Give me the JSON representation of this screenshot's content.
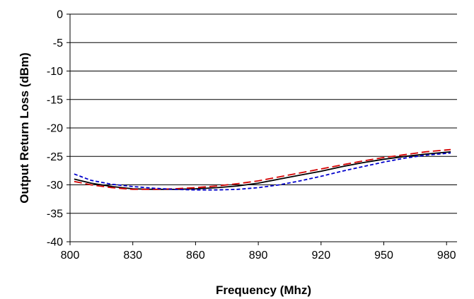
{
  "chart_data": {
    "type": "line",
    "title": "",
    "xlabel": "Frequency (Mhz)",
    "ylabel": "Output Return Loss (dBm)",
    "xlim": [
      800,
      985
    ],
    "ylim": [
      -40,
      0
    ],
    "x_ticks": [
      800,
      830,
      860,
      890,
      920,
      950,
      980
    ],
    "y_ticks": [
      0,
      -5,
      -10,
      -15,
      -20,
      -25,
      -30,
      -35,
      -40
    ],
    "x_tick_labels": [
      "800",
      "830",
      "860",
      "890",
      "920",
      "950",
      "980"
    ],
    "y_tick_labels": [
      "0",
      "-5",
      "-10",
      "-15",
      "-20",
      "-25",
      "-30",
      "-35",
      "-40"
    ],
    "grid": "horizontal",
    "legend": "none",
    "series": [
      {
        "color": "#000000",
        "style": "solid",
        "x": [
          802,
          810,
          820,
          830,
          840,
          850,
          860,
          870,
          880,
          890,
          900,
          910,
          920,
          930,
          940,
          950,
          960,
          970,
          982
        ],
        "y": [
          -29.0,
          -29.7,
          -30.3,
          -30.7,
          -30.8,
          -30.8,
          -30.7,
          -30.5,
          -30.2,
          -29.7,
          -29.0,
          -28.3,
          -27.6,
          -26.8,
          -26.1,
          -25.5,
          -25.0,
          -24.6,
          -24.2
        ]
      },
      {
        "color": "#d40000",
        "style": "long-dash",
        "x": [
          802,
          810,
          820,
          830,
          840,
          850,
          860,
          870,
          880,
          890,
          900,
          910,
          920,
          930,
          940,
          950,
          960,
          970,
          982
        ],
        "y": [
          -29.4,
          -30.0,
          -30.5,
          -30.8,
          -30.8,
          -30.7,
          -30.5,
          -30.2,
          -29.8,
          -29.3,
          -28.6,
          -27.9,
          -27.2,
          -26.5,
          -25.8,
          -25.2,
          -24.7,
          -24.2,
          -23.8
        ]
      },
      {
        "color": "#0000cc",
        "style": "short-dash",
        "x": [
          802,
          810,
          820,
          830,
          840,
          850,
          860,
          870,
          880,
          890,
          900,
          910,
          920,
          930,
          940,
          950,
          960,
          970,
          982
        ],
        "y": [
          -28.1,
          -29.2,
          -29.9,
          -30.3,
          -30.6,
          -30.8,
          -30.9,
          -30.9,
          -30.8,
          -30.5,
          -30.0,
          -29.3,
          -28.5,
          -27.6,
          -26.8,
          -26.0,
          -25.3,
          -24.8,
          -24.4
        ]
      }
    ]
  }
}
